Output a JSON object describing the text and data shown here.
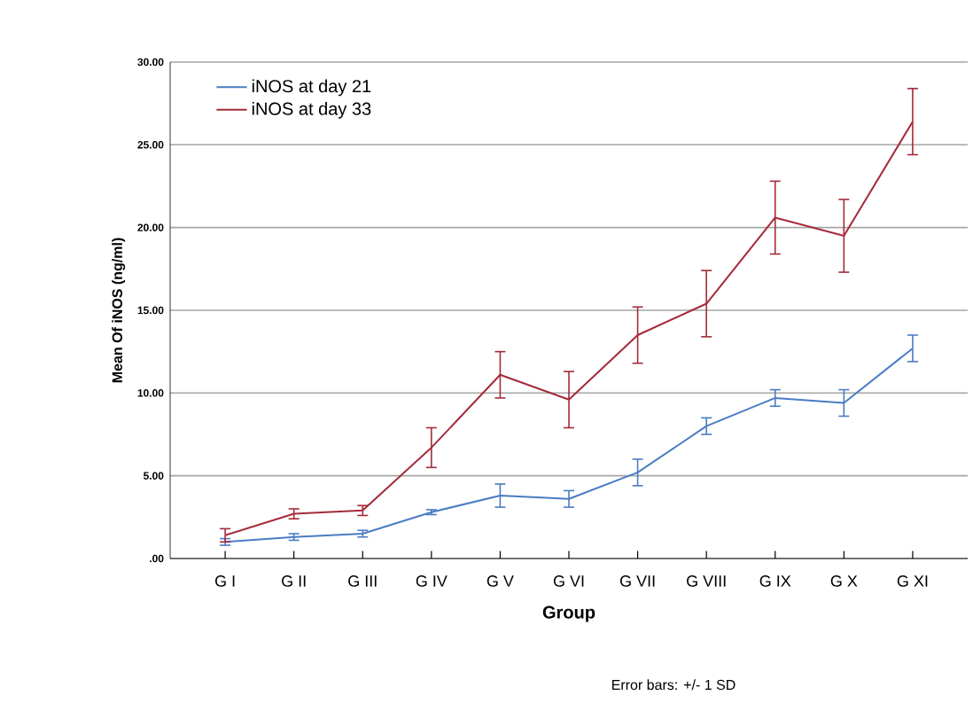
{
  "chart_data": {
    "type": "line",
    "xlabel": "Group",
    "ylabel": "Mean Of iNOS (ng/ml)",
    "categories": [
      "G I",
      "G II",
      "G III",
      "G IV",
      "G V",
      "G VI",
      "G VII",
      "G VIII",
      "G IX",
      "G X",
      "G XI"
    ],
    "series": [
      {
        "name": "iNOS at day 21",
        "color": "#4a7cc4",
        "values": [
          1.0,
          1.3,
          1.5,
          2.8,
          3.8,
          3.6,
          5.2,
          8.0,
          9.7,
          9.4,
          12.7
        ],
        "errors": [
          0.2,
          0.2,
          0.2,
          0.15,
          0.7,
          0.5,
          0.8,
          0.5,
          0.5,
          0.8,
          0.8
        ]
      },
      {
        "name": "iNOS at day 33",
        "color": "#a52a3a",
        "values": [
          1.4,
          2.7,
          2.9,
          6.7,
          11.1,
          9.6,
          13.5,
          15.4,
          20.6,
          19.5,
          26.4
        ],
        "errors": [
          0.4,
          0.3,
          0.3,
          1.2,
          1.4,
          1.7,
          1.7,
          2.0,
          2.2,
          2.2,
          2.0
        ]
      }
    ],
    "ylim": [
      0,
      30
    ],
    "yticks": [
      {
        "value": 0,
        "label": ".00"
      },
      {
        "value": 5,
        "label": "5.00"
      },
      {
        "value": 10,
        "label": "10.00"
      },
      {
        "value": 15,
        "label": "15.00"
      },
      {
        "value": 20,
        "label": "20.00"
      },
      {
        "value": 25,
        "label": "25.00"
      },
      {
        "value": 30,
        "label": "30.00"
      }
    ],
    "grid": "y",
    "legend": "top left",
    "marker": "none",
    "line_style": "solid",
    "annotations": [
      "Error bars: +/- 1 SD"
    ]
  }
}
